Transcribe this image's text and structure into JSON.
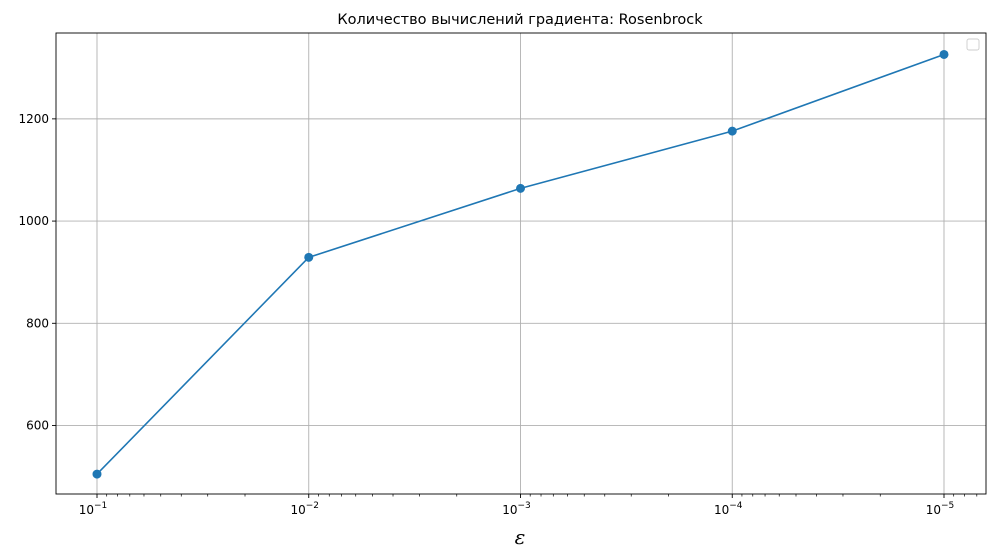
{
  "chart_data": {
    "type": "line",
    "title": "Количество вычислений градиента: Rosenbrock",
    "xlabel": "ε",
    "ylabel": "",
    "x_scale": "log",
    "x_inverted": true,
    "x": [
      0.1,
      0.01,
      0.001,
      0.0001,
      1e-05
    ],
    "x_tick_labels": [
      {
        "base": "10",
        "exp": "−1"
      },
      {
        "base": "10",
        "exp": "−2"
      },
      {
        "base": "10",
        "exp": "−3"
      },
      {
        "base": "10",
        "exp": "−4"
      },
      {
        "base": "10",
        "exp": "−5"
      }
    ],
    "y_ticks": [
      600,
      800,
      1000,
      1200
    ],
    "y_tick_labels": [
      "600",
      "800",
      "1000",
      "1200"
    ],
    "ylim": [
      466,
      1368
    ],
    "grid": true,
    "legend": "top-right (empty)",
    "series": [
      {
        "values": [
          505,
          929,
          1064,
          1176,
          1326
        ],
        "color": "#1f77b4",
        "marker": "circle"
      }
    ]
  }
}
